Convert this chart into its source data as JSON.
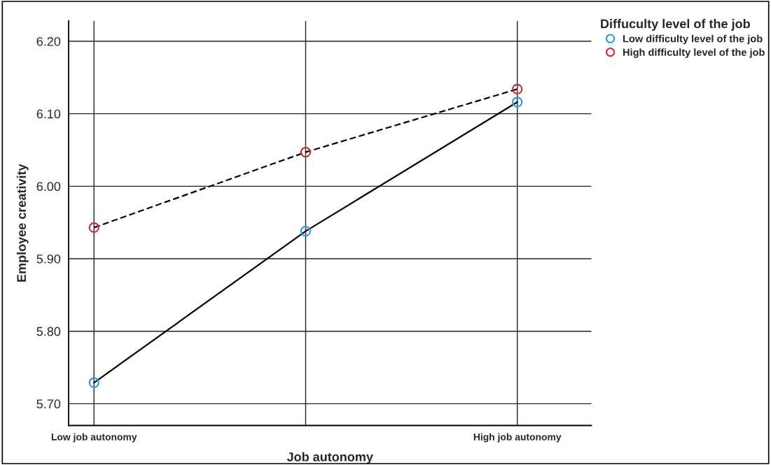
{
  "chart_data": {
    "type": "line",
    "xlabel": "Job autonomy",
    "ylabel": "Employee creativity",
    "legend_title": "Diffuculty level of the job",
    "categories": [
      "Low job autonomy",
      null,
      "High job autonomy"
    ],
    "series": [
      {
        "name": "Low difficulty level of the job",
        "color": "#3a9ad9",
        "values": [
          5.729,
          5.938,
          6.116
        ],
        "line_style": "solid"
      },
      {
        "name": "High difficulty level of the job",
        "color": "#c8303a",
        "values": [
          5.943,
          6.047,
          6.134
        ],
        "line_style": "dashed"
      }
    ],
    "ylim": [
      5.67,
      6.228
    ],
    "yticks": [
      {
        "value": 5.7,
        "label": "5.70"
      },
      {
        "value": 5.8,
        "label": "5.80"
      },
      {
        "value": 5.9,
        "label": "5.90"
      },
      {
        "value": 6.0,
        "label": "6.00"
      },
      {
        "value": 6.1,
        "label": "6.10"
      },
      {
        "value": 6.2,
        "label": "6.20"
      }
    ],
    "grid": true,
    "legend": "top right",
    "marker": "circle"
  }
}
